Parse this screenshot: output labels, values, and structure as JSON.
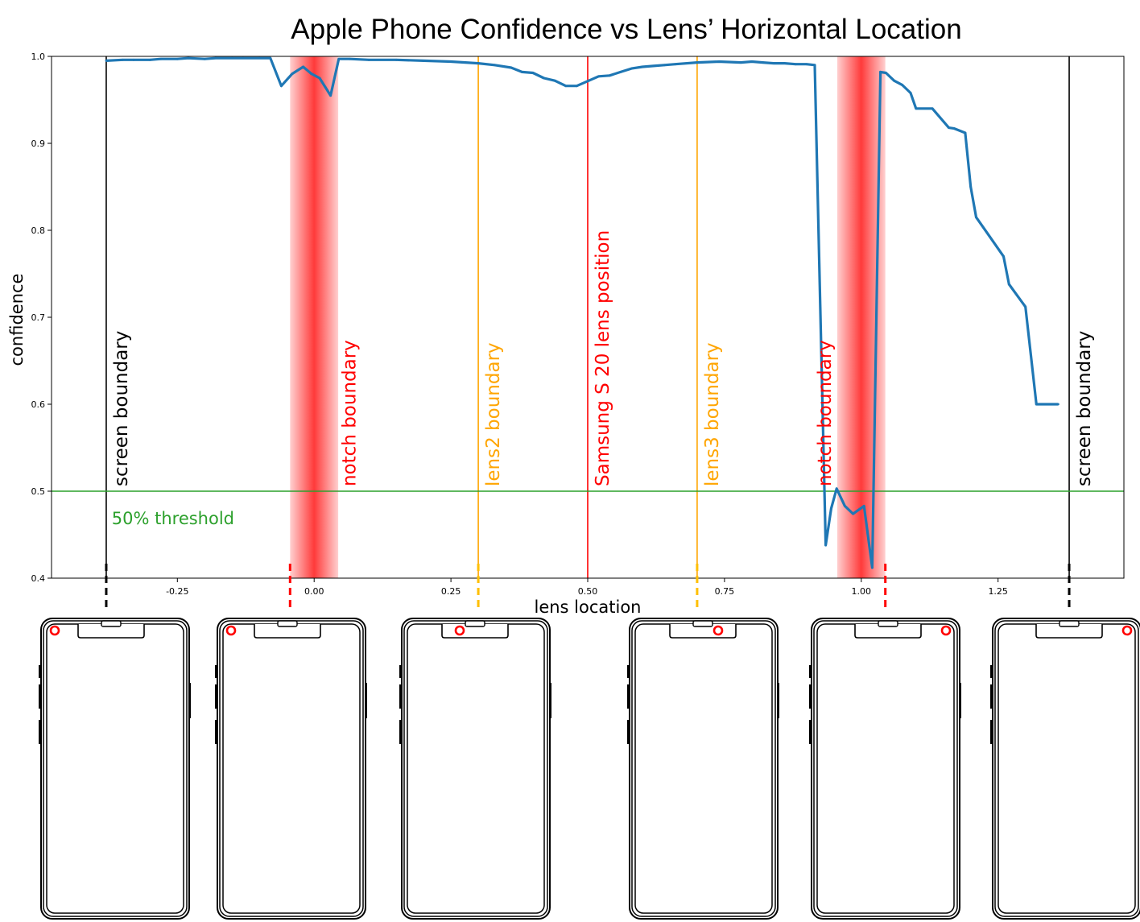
{
  "chart_data": {
    "type": "line",
    "title": "Apple Phone Confidence vs Lens’ Horizontal Location",
    "xlabel": "lens location",
    "ylabel": "confidence",
    "xlim": [
      -0.48,
      1.48
    ],
    "ylim": [
      0.4,
      1.0
    ],
    "x_ticks": [
      -0.25,
      0.0,
      0.25,
      0.5,
      0.75,
      1.0,
      1.25
    ],
    "x_tick_labels": [
      "-0.25",
      "0.00",
      "0.25",
      "0.50",
      "0.75",
      "1.00",
      "1.25"
    ],
    "y_ticks": [
      0.4,
      0.5,
      0.6,
      0.7,
      0.8,
      0.9,
      1.0
    ],
    "y_tick_labels": [
      "0.4",
      "0.5",
      "0.6",
      "0.7",
      "0.8",
      "0.9",
      "1.0"
    ],
    "grid": false,
    "series": [
      {
        "color": "#1f77b4",
        "x": [
          -0.38,
          -0.35,
          -0.33,
          -0.3,
          -0.28,
          -0.25,
          -0.23,
          -0.2,
          -0.18,
          -0.15,
          -0.13,
          -0.1,
          -0.08,
          -0.06,
          -0.04,
          -0.02,
          -0.005,
          0.01,
          0.03,
          0.045,
          0.065,
          0.1,
          0.15,
          0.2,
          0.25,
          0.3,
          0.33,
          0.36,
          0.38,
          0.4,
          0.42,
          0.44,
          0.46,
          0.48,
          0.52,
          0.54,
          0.56,
          0.58,
          0.6,
          0.62,
          0.64,
          0.66,
          0.7,
          0.74,
          0.78,
          0.8,
          0.82,
          0.84,
          0.86,
          0.88,
          0.9,
          0.915,
          0.935,
          0.945,
          0.955,
          0.97,
          0.985,
          1.005,
          1.02,
          1.035,
          1.045,
          1.06,
          1.075,
          1.09,
          1.1,
          1.13,
          1.16,
          1.17,
          1.19,
          1.2,
          1.21,
          1.23,
          1.26,
          1.27,
          1.3,
          1.32,
          1.34,
          1.36
        ],
        "y": [
          0.995,
          0.996,
          0.996,
          0.996,
          0.997,
          0.997,
          0.998,
          0.997,
          0.998,
          0.998,
          0.998,
          0.998,
          0.998,
          0.966,
          0.98,
          0.988,
          0.98,
          0.975,
          0.955,
          0.997,
          0.997,
          0.996,
          0.996,
          0.995,
          0.994,
          0.992,
          0.99,
          0.987,
          0.982,
          0.981,
          0.975,
          0.972,
          0.966,
          0.966,
          0.977,
          0.978,
          0.982,
          0.986,
          0.988,
          0.989,
          0.99,
          0.991,
          0.993,
          0.994,
          0.993,
          0.994,
          0.993,
          0.992,
          0.992,
          0.991,
          0.991,
          0.99,
          0.438,
          0.48,
          0.503,
          0.483,
          0.474,
          0.483,
          0.412,
          0.982,
          0.981,
          0.972,
          0.967,
          0.958,
          0.94,
          0.94,
          0.918,
          0.917,
          0.912,
          0.85,
          0.815,
          0.797,
          0.77,
          0.738,
          0.712,
          0.6,
          0.6,
          0.6
        ]
      }
    ],
    "vertical_lines": [
      {
        "x": -0.38,
        "label": "screen boundary",
        "color": "#000000"
      },
      {
        "x": -0.044,
        "label": "",
        "color": "#ff0000"
      },
      {
        "x": 0.3,
        "label": "lens2 boundary",
        "color": "#ffa500"
      },
      {
        "x": 0.5,
        "label": "Samsung S 20 lens position",
        "color": "#ff0000"
      },
      {
        "x": 0.7,
        "label": "lens3 boundary",
        "color": "#ffa500"
      },
      {
        "x": 1.044,
        "label": "",
        "color": "#ff0000"
      },
      {
        "x": 1.38,
        "label": "screen boundary",
        "color": "#000000"
      }
    ],
    "notch_bands": [
      {
        "x_start": -0.044,
        "x_end": 0.044,
        "label": "notch boundary",
        "color": "#ff0000"
      },
      {
        "x_start": 0.956,
        "x_end": 1.044,
        "label": "notch boundary",
        "color": "#ff0000"
      }
    ],
    "threshold": {
      "y": 0.5,
      "label": "50% threshold",
      "color": "#2ca02c"
    },
    "phone_illustrations": [
      {
        "lens_position": "left-corner",
        "marker_color": "#ff0000"
      },
      {
        "lens_position": "left-corner",
        "marker_color": "#ff0000"
      },
      {
        "lens_position": "notch-left",
        "marker_color": "#ff0000"
      },
      {
        "lens_position": "notch-right",
        "marker_color": "#ff0000"
      },
      {
        "lens_position": "right-corner",
        "marker_color": "#ff0000"
      },
      {
        "lens_position": "right-corner",
        "marker_color": "#ff0000"
      }
    ]
  }
}
